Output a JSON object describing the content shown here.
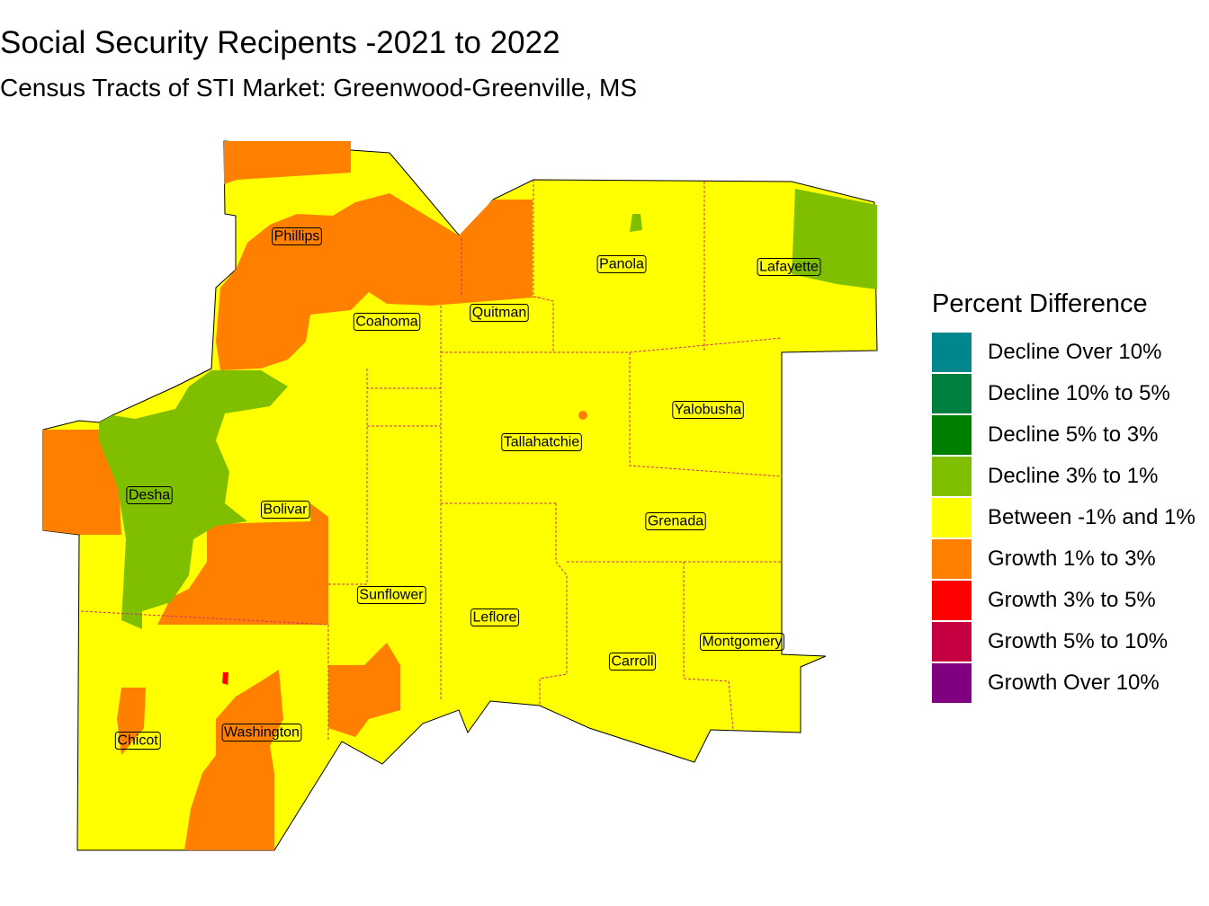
{
  "title": "Social Security Recipents -2021 to 2022",
  "subtitle": "Census Tracts of STI Market: Greenwood-Greenville, MS",
  "counties": [
    "Phillips",
    "Coahoma",
    "Quitman",
    "Panola",
    "Lafayette",
    "Desha",
    "Bolivar",
    "Tallahatchie",
    "Yalobusha",
    "Grenada",
    "Sunflower",
    "Leflore",
    "Carroll",
    "Montgomery",
    "Chicot",
    "Washington"
  ],
  "legend": {
    "title": "Percent Difference",
    "items": [
      {
        "label": "Decline Over 10%",
        "color": "#00868B"
      },
      {
        "label": "Decline 10% to 5%",
        "color": "#008040"
      },
      {
        "label": "Decline 5% to 3%",
        "color": "#008000"
      },
      {
        "label": "Decline 3% to 1%",
        "color": "#7FBF00"
      },
      {
        "label": "Between -1% and 1%",
        "color": "#FFFF00"
      },
      {
        "label": "Growth 1% to 3%",
        "color": "#FF8000"
      },
      {
        "label": "Growth 3% to 5%",
        "color": "#FF0000"
      },
      {
        "label": "Growth 5% to 10%",
        "color": "#C40040"
      },
      {
        "label": "Growth Over 10%",
        "color": "#800080"
      }
    ]
  }
}
